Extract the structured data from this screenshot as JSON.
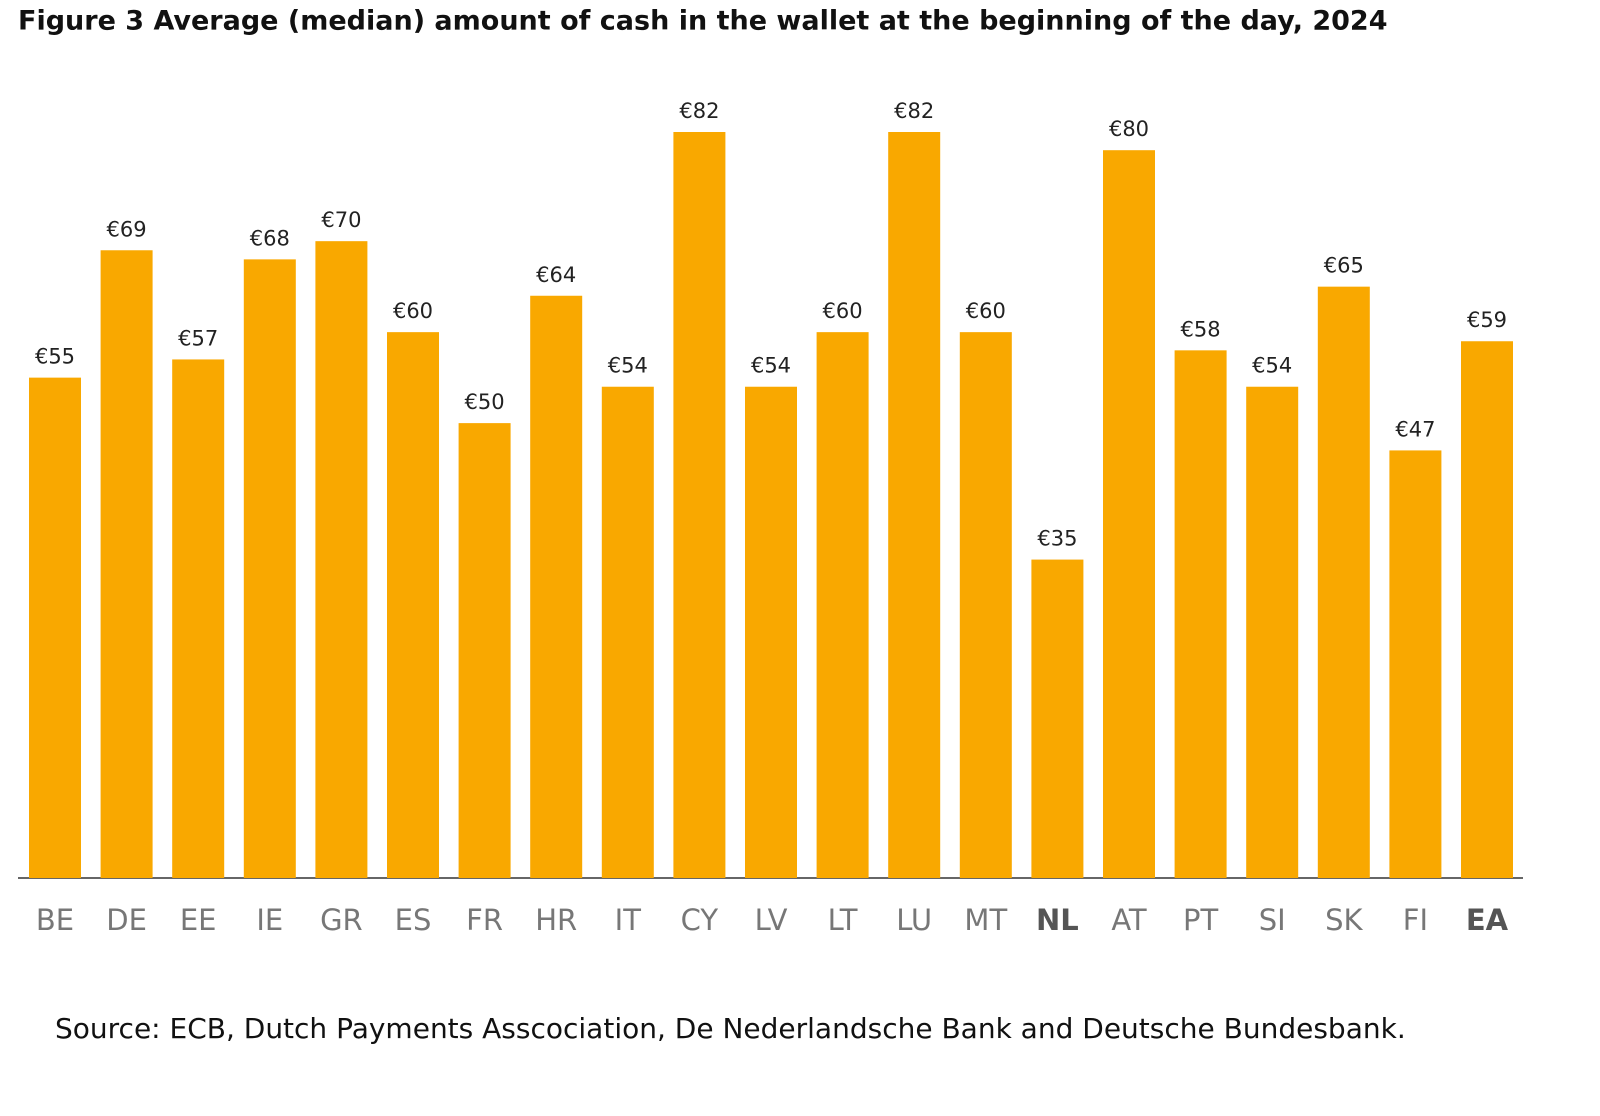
{
  "chart_data": {
    "type": "bar",
    "title": "Figure 3  Average (median) amount of cash in the wallet at the beginning of the day, 2024",
    "categories": [
      "BE",
      "DE",
      "EE",
      "IE",
      "GR",
      "ES",
      "FR",
      "HR",
      "IT",
      "CY",
      "LV",
      "LT",
      "LU",
      "MT",
      "NL",
      "AT",
      "PT",
      "SI",
      "SK",
      "FI",
      "EA"
    ],
    "values": [
      55,
      69,
      57,
      68,
      70,
      60,
      50,
      64,
      54,
      82,
      54,
      60,
      82,
      60,
      35,
      80,
      58,
      54,
      65,
      47,
      59
    ],
    "value_labels": [
      "€55",
      "€69",
      "€57",
      "€68",
      "€70",
      "€60",
      "€50",
      "€64",
      "€54",
      "€82",
      "€54",
      "€60",
      "€82",
      "€60",
      "€35",
      "€80",
      "€58",
      "€54",
      "€65",
      "€47",
      "€59"
    ],
    "bold_categories": [
      false,
      false,
      false,
      false,
      false,
      false,
      false,
      false,
      false,
      false,
      false,
      false,
      false,
      false,
      true,
      false,
      false,
      false,
      false,
      false,
      true
    ],
    "color": "#f9a800",
    "source": "Source: ECB, Dutch Payments Asscociation, De Nederlandsche Bank and Deutsche Bundesbank."
  }
}
